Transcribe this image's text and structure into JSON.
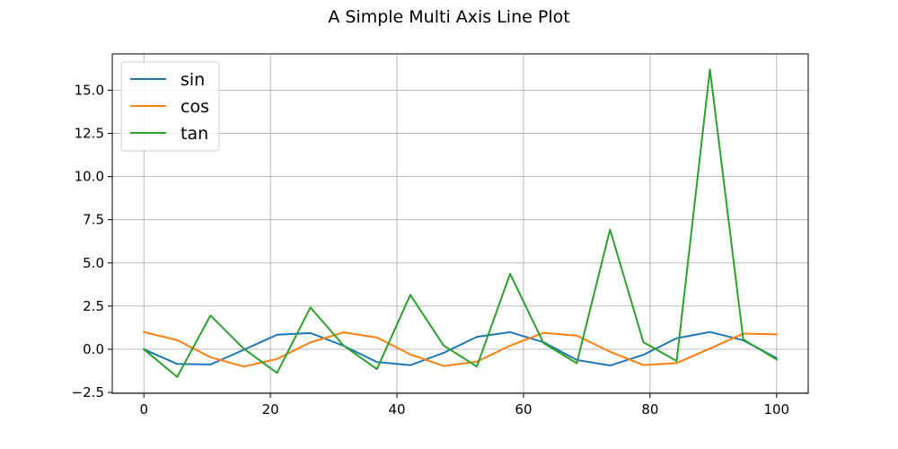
{
  "chart_data": {
    "type": "line",
    "title": "A Simple Multi Axis Line Plot",
    "xlabel": "",
    "ylabel": "",
    "xlim": [
      -5,
      105
    ],
    "ylim": [
      -2.55,
      17.1
    ],
    "grid": true,
    "legend_position": "upper-left",
    "xticks": [
      0,
      20,
      40,
      60,
      80,
      100
    ],
    "xtick_labels": [
      "0",
      "20",
      "40",
      "60",
      "80",
      "100"
    ],
    "yticks": [
      -2.5,
      0.0,
      2.5,
      5.0,
      7.5,
      10.0,
      12.5,
      15.0
    ],
    "ytick_labels": [
      "−2.5",
      "0.0",
      "2.5",
      "5.0",
      "7.5",
      "10.0",
      "12.5",
      "15.0"
    ],
    "x": [
      0,
      5.26,
      10.53,
      15.79,
      21.05,
      26.32,
      31.58,
      36.84,
      42.11,
      47.37,
      52.63,
      57.89,
      63.16,
      68.42,
      73.68,
      78.95,
      84.21,
      89.47,
      94.74,
      100
    ],
    "series": [
      {
        "name": "sin",
        "color": "#1f77b4",
        "values": [
          0.0,
          -0.85,
          -0.88,
          -0.03,
          0.84,
          0.94,
          0.2,
          -0.74,
          -0.92,
          -0.21,
          0.72,
          0.99,
          0.41,
          -0.62,
          -0.94,
          -0.32,
          0.64,
          1.0,
          0.52,
          -0.51
        ]
      },
      {
        "name": "cos",
        "color": "#ff7f0e",
        "values": [
          1.0,
          0.53,
          -0.46,
          -1.0,
          -0.56,
          0.4,
          0.98,
          0.68,
          -0.3,
          -0.97,
          -0.72,
          0.21,
          0.95,
          0.79,
          -0.14,
          -0.91,
          -0.8,
          0.04,
          0.91,
          0.86
        ]
      },
      {
        "name": "tan",
        "color": "#2ca02c",
        "values": [
          0.0,
          -1.6,
          1.96,
          0.03,
          -1.37,
          2.42,
          0.21,
          -1.15,
          3.15,
          0.22,
          -1.0,
          4.37,
          0.36,
          -0.81,
          6.93,
          0.41,
          -0.68,
          16.2,
          0.57,
          -0.59
        ]
      }
    ]
  }
}
